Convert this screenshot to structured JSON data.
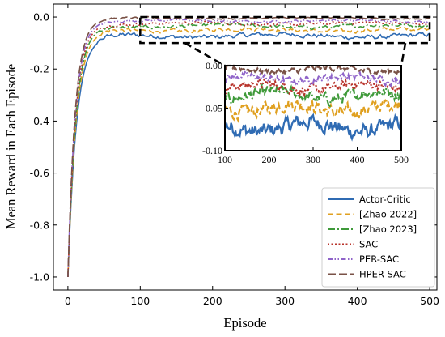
{
  "chart_data": {
    "type": "line",
    "xlabel": "Episode",
    "ylabel": "Mean Reward in Each Episode",
    "xlim": [
      -20,
      510
    ],
    "ylim": [
      -1.05,
      0.05
    ],
    "x_ticks": [
      0,
      100,
      200,
      300,
      400,
      500
    ],
    "y_ticks": [
      -1.0,
      -0.8,
      -0.6,
      -0.4,
      -0.2,
      0.0
    ],
    "grid": false,
    "legend_position": "bottom-right",
    "series": [
      {
        "name": "Actor-Critic",
        "color": "#2f6bb3",
        "linestyle": "solid",
        "start_value": -1.0,
        "plateau": -0.072,
        "converge_episode": 60
      },
      {
        "name": "[Zhao 2022]",
        "color": "#e0a020",
        "linestyle": "dashed",
        "start_value": -1.0,
        "plateau": -0.05,
        "converge_episode": 60
      },
      {
        "name": "[Zhao 2023]",
        "color": "#3f9a3a",
        "linestyle": "dashdot",
        "start_value": -1.0,
        "plateau": -0.035,
        "converge_episode": 60
      },
      {
        "name": "SAC",
        "color": "#b8332b",
        "linestyle": "dotted",
        "start_value": -1.0,
        "plateau": -0.025,
        "converge_episode": 70
      },
      {
        "name": "PER-SAC",
        "color": "#8f63c9",
        "linestyle": "dashdotdot",
        "start_value": -1.0,
        "plateau": -0.015,
        "converge_episode": 70
      },
      {
        "name": "HPER-SAC",
        "color": "#7a5247",
        "linestyle": "longdash",
        "start_value": -1.0,
        "plateau": -0.005,
        "converge_episode": 70
      }
    ],
    "inset": {
      "xlim": [
        100,
        500
      ],
      "ylim": [
        -0.1,
        0.0
      ],
      "x_ticks": [
        100,
        200,
        300,
        400,
        500
      ],
      "y_ticks": [
        0.0,
        -0.05,
        -0.1
      ],
      "x_tick_labels": [
        "100",
        "200",
        "300",
        "400",
        "500"
      ],
      "y_tick_labels": [
        "0.00",
        "-0.05",
        "-0.10"
      ],
      "zoom_region": {
        "x": [
          100,
          500
        ],
        "y": [
          -0.1,
          0.0
        ]
      }
    }
  }
}
